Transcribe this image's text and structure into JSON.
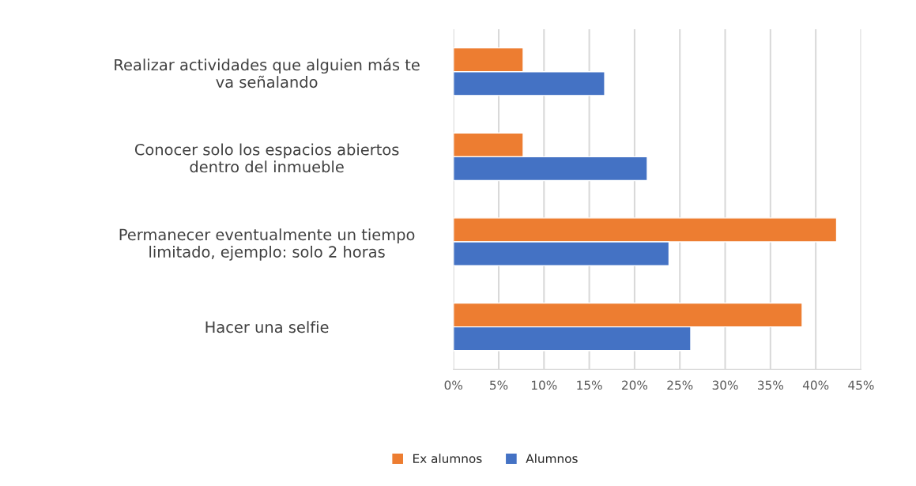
{
  "chart_data": {
    "type": "bar",
    "orientation": "horizontal",
    "categories": [
      "Realizar actividades que alguien más te\nva señalando",
      "Conocer solo los espacios abiertos\ndentro del inmueble",
      "Permanecer eventualmente un tiempo\nlimitado, ejemplo: solo 2 horas",
      "Hacer una selfie"
    ],
    "series": [
      {
        "name": "Ex alumnos",
        "color": "#ed7d31",
        "values": [
          7.7,
          7.7,
          42.3,
          38.5
        ]
      },
      {
        "name": "Alumnos",
        "color": "#4472c4",
        "values": [
          16.7,
          21.4,
          23.8,
          26.2
        ]
      }
    ],
    "xlim": [
      0,
      45
    ],
    "xticks": [
      {
        "value": 0,
        "label": "0%"
      },
      {
        "value": 5,
        "label": "5%"
      },
      {
        "value": 10,
        "label": "10%"
      },
      {
        "value": 15,
        "label": "15%"
      },
      {
        "value": 20,
        "label": "20%"
      },
      {
        "value": 25,
        "label": "25%"
      },
      {
        "value": 30,
        "label": "30%"
      },
      {
        "value": 35,
        "label": "35%"
      },
      {
        "value": 40,
        "label": "40%"
      },
      {
        "value": 45,
        "label": "45%"
      }
    ],
    "grid": "x",
    "legend": "bottom"
  }
}
